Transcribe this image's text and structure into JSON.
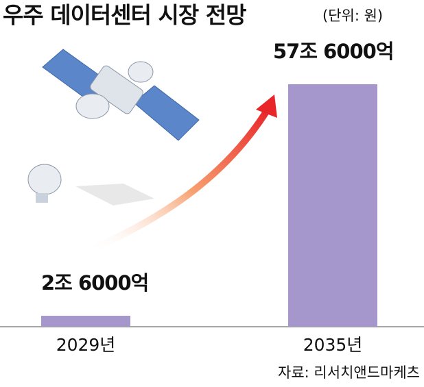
{
  "chart_data": {
    "type": "bar",
    "title": "우주 데이터센터 시장 전망",
    "subtitle": "(단위: 원)",
    "categories": [
      "2029년",
      "2035년"
    ],
    "values": [
      2.6,
      57.6
    ],
    "value_labels": [
      "2조 6000억",
      "57조 6000억"
    ],
    "color": "#a597cb",
    "source": "자료: 리서치앤드마케츠"
  }
}
